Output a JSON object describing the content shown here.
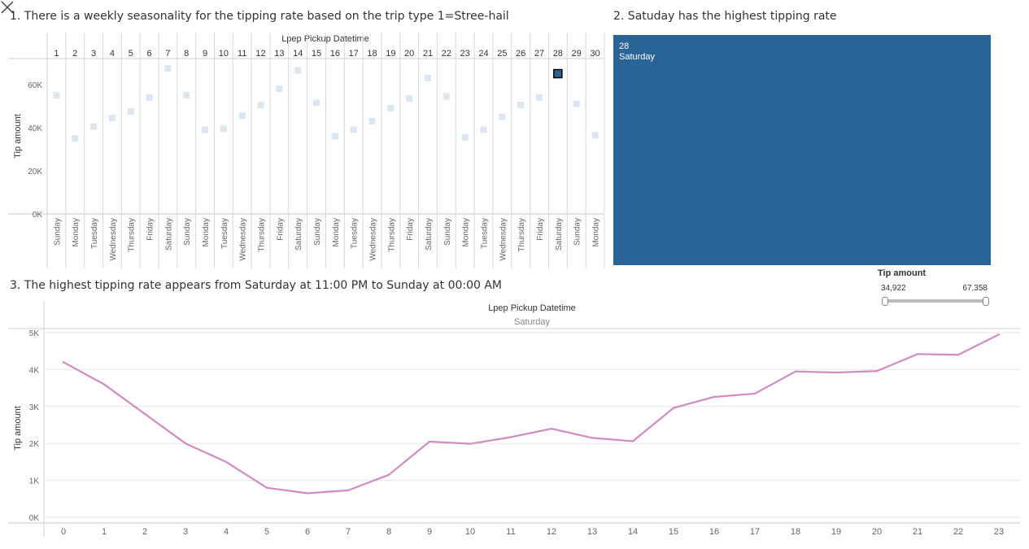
{
  "titles": {
    "t1": "1. There is a weekly seasonality for the tipping rate based on the trip type 1=Stree-hail",
    "t2": "2. Satuday has the highest tipping rate",
    "t3": "3. The highest tipping rate appears from Saturday at 11:00 PM to Sunday at 00:00 AM"
  },
  "treemap": {
    "day": "28",
    "weekday": "Saturday",
    "color": "#2a6496"
  },
  "filter": {
    "title": "Tip amount",
    "min_label": "34,922",
    "max_label": "67,358",
    "min": 34922,
    "max": 67358
  },
  "colors": {
    "highlight": "#2a6496",
    "faded": "#dce6f0",
    "line": "#d08cc0",
    "grid": "#e6e6e6",
    "axis_text": "#666666"
  },
  "chart_data": [
    {
      "type": "scatter",
      "title": "Lpep Pickup Datetime",
      "ylabel": "Tip amount",
      "ylim": [
        0,
        72000
      ],
      "yticks": [
        0,
        20000,
        40000,
        60000
      ],
      "ytick_labels": [
        "0K",
        "20K",
        "40K",
        "60K"
      ],
      "highlighted_day": "28",
      "days": [
        "1",
        "2",
        "3",
        "4",
        "5",
        "6",
        "7",
        "8",
        "9",
        "10",
        "11",
        "12",
        "13",
        "14",
        "15",
        "16",
        "17",
        "18",
        "19",
        "20",
        "21",
        "22",
        "23",
        "24",
        "25",
        "26",
        "27",
        "28",
        "29",
        "30"
      ],
      "weekdays": [
        "Sunday",
        "Monday",
        "Tuesday",
        "Wednesday",
        "Thursday",
        "Friday",
        "Saturday",
        "Sunday",
        "Monday",
        "Tuesday",
        "Wednesday",
        "Thursday",
        "Friday",
        "Saturday",
        "Sunday",
        "Monday",
        "Tuesday",
        "Wednesday",
        "Thursday",
        "Friday",
        "Saturday",
        "Sunday",
        "Monday",
        "Tuesday",
        "Wednesday",
        "Thursday",
        "Friday",
        "Saturday",
        "Sunday",
        "Monday"
      ],
      "values": [
        55000,
        35000,
        40500,
        44500,
        47500,
        54000,
        67500,
        55000,
        39000,
        39500,
        45500,
        50500,
        58000,
        66500,
        51500,
        36000,
        39000,
        43000,
        49000,
        53500,
        63000,
        54500,
        35500,
        39000,
        45000,
        50500,
        54000,
        65000,
        51000,
        36500
      ]
    },
    {
      "type": "line",
      "title": "Lpep Pickup Datetime",
      "subtitle": "Saturday",
      "ylabel": "Tip amount",
      "ylim": [
        0,
        5000
      ],
      "yticks": [
        0,
        1000,
        2000,
        3000,
        4000,
        5000
      ],
      "ytick_labels": [
        "0K",
        "1K",
        "2K",
        "3K",
        "4K",
        "5K"
      ],
      "x": [
        0,
        1,
        2,
        3,
        4,
        5,
        6,
        7,
        8,
        9,
        10,
        11,
        12,
        13,
        14,
        15,
        16,
        17,
        18,
        19,
        20,
        21,
        22,
        23
      ],
      "values": [
        4200,
        3600,
        2800,
        2000,
        1500,
        800,
        650,
        730,
        1150,
        2050,
        1990,
        2170,
        2400,
        2150,
        2060,
        2960,
        3260,
        3350,
        3950,
        3920,
        3960,
        4420,
        4400,
        4950
      ]
    }
  ]
}
